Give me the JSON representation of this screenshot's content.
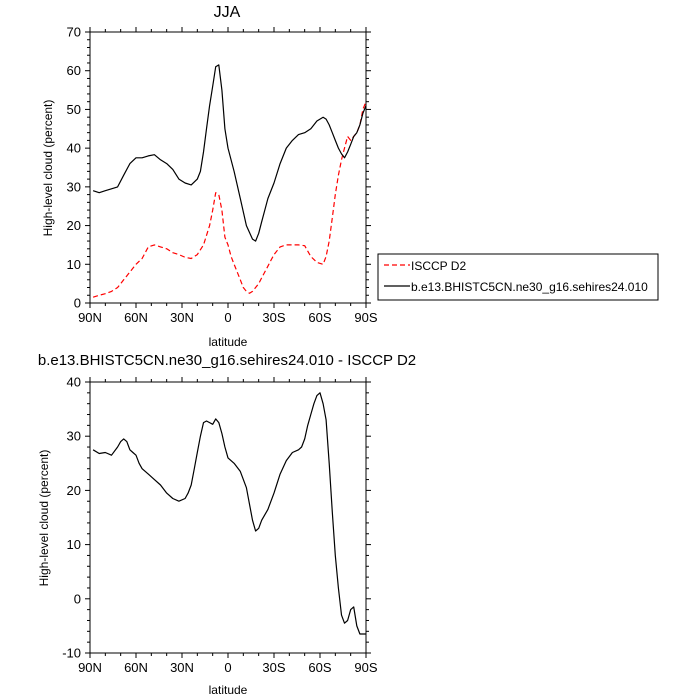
{
  "chart_data": [
    {
      "type": "line",
      "title": "JJA",
      "xlabel": "latitude",
      "ylabel": "High-level cloud (percent)",
      "xlim": [
        90,
        -90
      ],
      "ylim": [
        0,
        70
      ],
      "x_ticks": [
        90,
        60,
        30,
        0,
        -30,
        -60,
        -90
      ],
      "x_tick_labels": [
        "90N",
        "60N",
        "30N",
        "0",
        "30S",
        "60S",
        "90S"
      ],
      "y_ticks": [
        0,
        10,
        20,
        30,
        40,
        50,
        60,
        70
      ],
      "y_tick_labels": [
        "0",
        "10",
        "20",
        "30",
        "40",
        "50",
        "60",
        "70"
      ],
      "grid": false,
      "legend_position": "right",
      "series": [
        {
          "name": "ISCCP D2",
          "color": "#ff0000",
          "dashed": true,
          "x": [
            88,
            84,
            80,
            76,
            72,
            68,
            64,
            60,
            56,
            52,
            48,
            44,
            40,
            36,
            32,
            28,
            24,
            20,
            16,
            12,
            10,
            8,
            6,
            4,
            2,
            0,
            -2,
            -4,
            -6,
            -8,
            -10,
            -12,
            -14,
            -16,
            -18,
            -20,
            -22,
            -24,
            -26,
            -28,
            -30,
            -34,
            -38,
            -42,
            -46,
            -50,
            -54,
            -58,
            -62,
            -64,
            -66,
            -68,
            -70,
            -72,
            -74,
            -76,
            -78,
            -80,
            -82,
            -84,
            -86,
            -88,
            -90
          ],
          "y": [
            1.5,
            2,
            2.4,
            3,
            4,
            6,
            8,
            10,
            11.5,
            14.5,
            15,
            14.5,
            14,
            13,
            12.5,
            11.8,
            11.5,
            12.5,
            15,
            20,
            24,
            28.5,
            28,
            24,
            17,
            15,
            12,
            10,
            8,
            6,
            4,
            3,
            2.5,
            3,
            4,
            5,
            6.5,
            8,
            9.5,
            11,
            12.5,
            14.5,
            15,
            15,
            15,
            14.8,
            12,
            10.5,
            10,
            12,
            16,
            22,
            28,
            33,
            37,
            40,
            43,
            42,
            43,
            44,
            46,
            50,
            52
          ]
        },
        {
          "name": "b.e13.BHISTC5CN.ne30_g16.sehires24.010",
          "color": "#000000",
          "dashed": false,
          "x": [
            88,
            84,
            80,
            76,
            72,
            68,
            64,
            60,
            56,
            52,
            48,
            44,
            40,
            36,
            32,
            28,
            24,
            20,
            18,
            16,
            14,
            12,
            10,
            8,
            6,
            4,
            2,
            0,
            -4,
            -8,
            -12,
            -16,
            -18,
            -20,
            -22,
            -24,
            -26,
            -30,
            -34,
            -38,
            -42,
            -46,
            -50,
            -54,
            -58,
            -62,
            -64,
            -66,
            -68,
            -70,
            -72,
            -74,
            -76,
            -78,
            -80,
            -82,
            -84,
            -86,
            -88,
            -90
          ],
          "y": [
            29,
            28.5,
            29,
            29.5,
            30,
            33,
            36,
            37.5,
            37.5,
            38,
            38.3,
            37,
            36,
            34.5,
            32,
            31,
            30.5,
            32,
            34,
            39,
            45,
            51,
            56,
            61,
            61.5,
            55,
            45,
            40,
            34,
            27,
            20,
            16.5,
            16,
            18,
            21,
            24,
            27,
            31,
            36,
            40,
            42,
            43.5,
            44,
            45,
            47,
            48,
            47.5,
            46,
            44,
            42,
            40,
            38.5,
            37.5,
            39,
            41,
            43,
            44,
            46,
            49,
            51
          ]
        }
      ]
    },
    {
      "type": "line",
      "title": "b.e13.BHISTC5CN.ne30_g16.sehires24.010 - ISCCP D2",
      "xlabel": "latitude",
      "ylabel": "High-level cloud (percent)",
      "xlim": [
        90,
        -90
      ],
      "ylim": [
        -10,
        40
      ],
      "x_ticks": [
        90,
        60,
        30,
        0,
        -30,
        -60,
        -90
      ],
      "x_tick_labels": [
        "90N",
        "60N",
        "30N",
        "0",
        "30S",
        "60S",
        "90S"
      ],
      "y_ticks": [
        -10,
        0,
        10,
        20,
        30,
        40
      ],
      "y_tick_labels": [
        "-10",
        "0",
        "10",
        "20",
        "30",
        "40"
      ],
      "grid": false,
      "series": [
        {
          "color": "#000000",
          "dashed": false,
          "x": [
            88,
            84,
            80,
            76,
            72,
            70,
            68,
            66,
            64,
            62,
            60,
            58,
            56,
            52,
            48,
            44,
            40,
            36,
            32,
            28,
            26,
            24,
            22,
            20,
            18,
            16,
            14,
            12,
            10,
            8,
            6,
            4,
            2,
            0,
            -4,
            -8,
            -12,
            -16,
            -18,
            -20,
            -22,
            -24,
            -26,
            -30,
            -34,
            -38,
            -42,
            -46,
            -48,
            -50,
            -52,
            -54,
            -56,
            -58,
            -60,
            -62,
            -64,
            -66,
            -68,
            -70,
            -72,
            -74,
            -76,
            -78,
            -80,
            -82,
            -84,
            -86,
            -88,
            -90
          ],
          "y": [
            27.5,
            26.8,
            27,
            26.5,
            28,
            29,
            29.5,
            29,
            27.5,
            27,
            26.5,
            25,
            24,
            23,
            22,
            21,
            19.5,
            18.5,
            18,
            18.5,
            19.5,
            21,
            24,
            27,
            30,
            32.5,
            32.8,
            32.5,
            32.2,
            33.2,
            32.5,
            30.5,
            28,
            26,
            25,
            23.5,
            20.5,
            14.5,
            12.5,
            13,
            14.5,
            15.5,
            16.5,
            19.5,
            23,
            25.5,
            27,
            27.5,
            28,
            29.5,
            32,
            34,
            36,
            37.5,
            38,
            36,
            33,
            25,
            16,
            8,
            2,
            -3,
            -4.5,
            -4,
            -2,
            -1.5,
            -5,
            -6.5,
            -6.5,
            -6.5
          ]
        }
      ]
    }
  ]
}
